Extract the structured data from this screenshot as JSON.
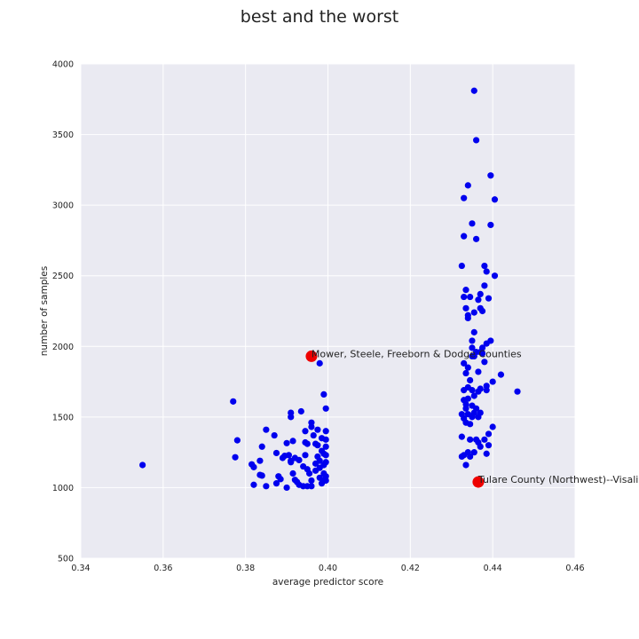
{
  "chart_data": {
    "type": "scatter",
    "title": "best and the worst",
    "xlabel": "average predictor score",
    "ylabel": "number of samples",
    "xlim": [
      0.34,
      0.46
    ],
    "ylim": [
      500,
      4000
    ],
    "xticks": [
      0.34,
      0.36,
      0.38,
      0.4,
      0.42,
      0.44,
      0.46
    ],
    "xtick_labels": [
      "0.34",
      "0.36",
      "0.38",
      "0.40",
      "0.42",
      "0.44",
      "0.46"
    ],
    "yticks": [
      500,
      1000,
      1500,
      2000,
      2500,
      3000,
      3500,
      4000
    ],
    "ytick_labels": [
      "500",
      "1000",
      "1500",
      "2000",
      "2500",
      "3000",
      "3500",
      "4000"
    ],
    "grid": true,
    "colors": {
      "background": "#eaeaf2",
      "grid": "#ffffff",
      "series": "#0000ee",
      "highlight": "#ee0000"
    },
    "series": [
      {
        "color": "#0000ee",
        "points": [
          [
            0.355,
            1160
          ],
          [
            0.377,
            1610
          ],
          [
            0.3775,
            1215
          ],
          [
            0.378,
            1335
          ],
          [
            0.3815,
            1165
          ],
          [
            0.382,
            1145
          ],
          [
            0.382,
            1020
          ],
          [
            0.3835,
            1190
          ],
          [
            0.384,
            1290
          ],
          [
            0.3835,
            1090
          ],
          [
            0.384,
            1085
          ],
          [
            0.385,
            1410
          ],
          [
            0.385,
            1010
          ],
          [
            0.387,
            1370
          ],
          [
            0.3875,
            1245
          ],
          [
            0.3875,
            1030
          ],
          [
            0.388,
            1080
          ],
          [
            0.3885,
            1060
          ],
          [
            0.389,
            1210
          ],
          [
            0.3895,
            1225
          ],
          [
            0.39,
            1315
          ],
          [
            0.39,
            1000
          ],
          [
            0.3905,
            1230
          ],
          [
            0.391,
            1190
          ],
          [
            0.391,
            1180
          ],
          [
            0.3915,
            1100
          ],
          [
            0.391,
            1530
          ],
          [
            0.391,
            1500
          ],
          [
            0.3915,
            1330
          ],
          [
            0.392,
            1210
          ],
          [
            0.392,
            1055
          ],
          [
            0.3925,
            1040
          ],
          [
            0.393,
            1195
          ],
          [
            0.393,
            1020
          ],
          [
            0.3935,
            1540
          ],
          [
            0.394,
            1150
          ],
          [
            0.394,
            1010
          ],
          [
            0.3945,
            1400
          ],
          [
            0.3945,
            1320
          ],
          [
            0.3945,
            1230
          ],
          [
            0.395,
            1310
          ],
          [
            0.395,
            1130
          ],
          [
            0.395,
            1010
          ],
          [
            0.3955,
            1100
          ],
          [
            0.396,
            1460
          ],
          [
            0.396,
            1430
          ],
          [
            0.396,
            1050
          ],
          [
            0.396,
            1010
          ],
          [
            0.3965,
            1370
          ],
          [
            0.397,
            1310
          ],
          [
            0.397,
            1170
          ],
          [
            0.397,
            1120
          ],
          [
            0.3975,
            1410
          ],
          [
            0.3975,
            1300
          ],
          [
            0.3975,
            1220
          ],
          [
            0.398,
            1880
          ],
          [
            0.398,
            1190
          ],
          [
            0.398,
            1140
          ],
          [
            0.398,
            1070
          ],
          [
            0.3985,
            1350
          ],
          [
            0.3985,
            1260
          ],
          [
            0.3985,
            1030
          ],
          [
            0.399,
            1660
          ],
          [
            0.399,
            1240
          ],
          [
            0.399,
            1160
          ],
          [
            0.399,
            1100
          ],
          [
            0.399,
            1050
          ],
          [
            0.3995,
            1560
          ],
          [
            0.3995,
            1400
          ],
          [
            0.3995,
            1340
          ],
          [
            0.3995,
            1290
          ],
          [
            0.3995,
            1230
          ],
          [
            0.3995,
            1180
          ],
          [
            0.3995,
            1080
          ],
          [
            0.3995,
            1050
          ],
          [
            0.4325,
            2570
          ],
          [
            0.4325,
            1520
          ],
          [
            0.4325,
            1360
          ],
          [
            0.4325,
            1220
          ],
          [
            0.433,
            3050
          ],
          [
            0.433,
            2780
          ],
          [
            0.433,
            2350
          ],
          [
            0.433,
            1880
          ],
          [
            0.433,
            1690
          ],
          [
            0.433,
            1620
          ],
          [
            0.433,
            1490
          ],
          [
            0.433,
            1230
          ],
          [
            0.4335,
            2400
          ],
          [
            0.4335,
            2270
          ],
          [
            0.4335,
            1810
          ],
          [
            0.4335,
            1590
          ],
          [
            0.4335,
            1560
          ],
          [
            0.4335,
            1460
          ],
          [
            0.4335,
            1160
          ],
          [
            0.434,
            3140
          ],
          [
            0.434,
            2200
          ],
          [
            0.434,
            2220
          ],
          [
            0.434,
            1850
          ],
          [
            0.434,
            1710
          ],
          [
            0.434,
            1630
          ],
          [
            0.434,
            1520
          ],
          [
            0.434,
            1250
          ],
          [
            0.4345,
            2350
          ],
          [
            0.4345,
            1760
          ],
          [
            0.4345,
            1450
          ],
          [
            0.4345,
            1340
          ],
          [
            0.4345,
            1220
          ],
          [
            0.435,
            2870
          ],
          [
            0.435,
            2040
          ],
          [
            0.435,
            1990
          ],
          [
            0.435,
            1930
          ],
          [
            0.435,
            1690
          ],
          [
            0.435,
            1580
          ],
          [
            0.435,
            1500
          ],
          [
            0.4355,
            3810
          ],
          [
            0.4355,
            2240
          ],
          [
            0.4355,
            2100
          ],
          [
            0.4355,
            1930
          ],
          [
            0.4355,
            1650
          ],
          [
            0.4355,
            1530
          ],
          [
            0.4355,
            1250
          ],
          [
            0.436,
            3460
          ],
          [
            0.436,
            2760
          ],
          [
            0.436,
            1960
          ],
          [
            0.436,
            1560
          ],
          [
            0.436,
            1340
          ],
          [
            0.4365,
            2330
          ],
          [
            0.4365,
            1820
          ],
          [
            0.4365,
            1680
          ],
          [
            0.4365,
            1500
          ],
          [
            0.4365,
            1320
          ],
          [
            0.437,
            2370
          ],
          [
            0.437,
            2270
          ],
          [
            0.437,
            1960
          ],
          [
            0.437,
            1700
          ],
          [
            0.437,
            1530
          ],
          [
            0.437,
            1290
          ],
          [
            0.4375,
            2250
          ],
          [
            0.4375,
            1990
          ],
          [
            0.4375,
            1950
          ],
          [
            0.438,
            2430
          ],
          [
            0.438,
            2570
          ],
          [
            0.438,
            1890
          ],
          [
            0.438,
            1340
          ],
          [
            0.4385,
            2530
          ],
          [
            0.4385,
            2020
          ],
          [
            0.4385,
            1720
          ],
          [
            0.4385,
            1690
          ],
          [
            0.4385,
            1240
          ],
          [
            0.439,
            2340
          ],
          [
            0.439,
            1300
          ],
          [
            0.439,
            1380
          ],
          [
            0.4395,
            3210
          ],
          [
            0.4395,
            2860
          ],
          [
            0.4395,
            2040
          ],
          [
            0.44,
            1750
          ],
          [
            0.44,
            1430
          ],
          [
            0.4405,
            3040
          ],
          [
            0.4405,
            2500
          ],
          [
            0.442,
            1800
          ],
          [
            0.446,
            1680
          ]
        ]
      },
      {
        "color": "#ee0000",
        "points": [
          [
            0.396,
            1930
          ],
          [
            0.4365,
            1040
          ]
        ]
      }
    ],
    "annotations": [
      {
        "text": "Mower, Steele, Freeborn & Dodge Counties",
        "x": 0.396,
        "y": 1930
      },
      {
        "text": "Tulare County (Northwest)--Visalia",
        "x": 0.4365,
        "y": 1040
      }
    ]
  }
}
